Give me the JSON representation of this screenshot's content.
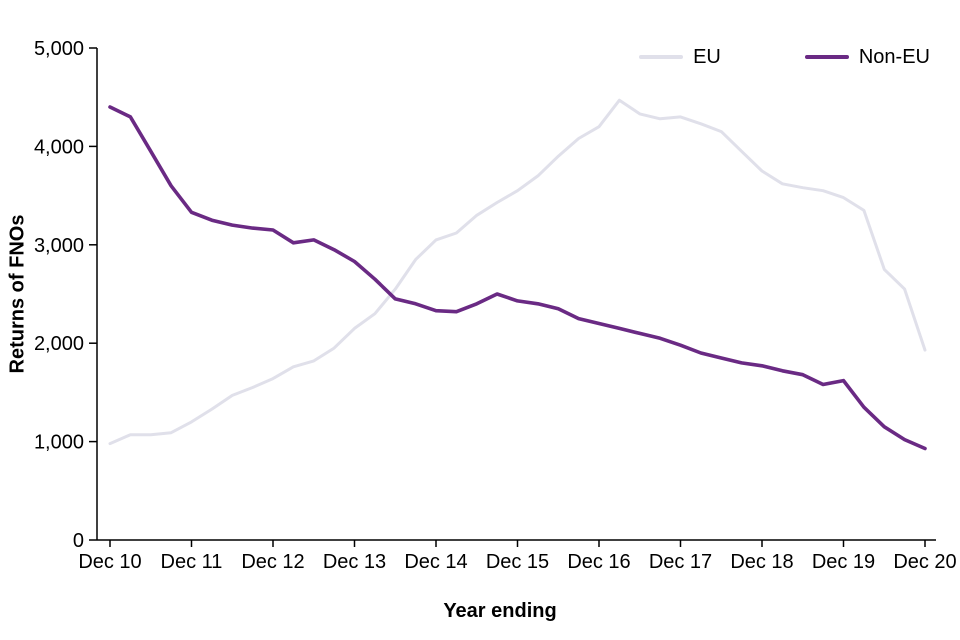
{
  "chart_data": {
    "type": "line",
    "title": "",
    "xlabel": "Year ending",
    "ylabel": "Returns of FNOs",
    "x_tick_labels": [
      "Dec 10",
      "Dec 11",
      "Dec 12",
      "Dec 13",
      "Dec 14",
      "Dec 15",
      "Dec 16",
      "Dec 17",
      "Dec 18",
      "Dec 19",
      "Dec 20"
    ],
    "tick_every": 4,
    "x_frequency": "quarterly",
    "y_ticks": [
      0,
      1000,
      2000,
      3000,
      4000,
      5000
    ],
    "y_tick_labels": [
      "0",
      "1,000",
      "2,000",
      "3,000",
      "4,000",
      "5,000"
    ],
    "ylim": [
      0,
      5000
    ],
    "grid": false,
    "legend_position": "top-right",
    "background_color": "#ffffff",
    "axis_color": "#000000",
    "series": [
      {
        "name": "EU",
        "color": "#e0e0ea",
        "values": [
          980,
          1070,
          1070,
          1090,
          1200,
          1330,
          1470,
          1550,
          1640,
          1760,
          1820,
          1950,
          2150,
          2300,
          2550,
          2850,
          3050,
          3120,
          3300,
          3430,
          3550,
          3700,
          3900,
          4080,
          4200,
          4470,
          4330,
          4280,
          4300,
          4230,
          4150,
          3950,
          3750,
          3620,
          3580,
          3550,
          3480,
          3350,
          2750,
          2550,
          1930
        ]
      },
      {
        "name": "Non-EU",
        "color": "#6a2a84",
        "values": [
          4400,
          4300,
          3950,
          3600,
          3330,
          3250,
          3200,
          3170,
          3150,
          3020,
          3050,
          2950,
          2830,
          2650,
          2450,
          2400,
          2330,
          2320,
          2400,
          2500,
          2430,
          2400,
          2350,
          2250,
          2200,
          2150,
          2100,
          2050,
          1980,
          1900,
          1850,
          1800,
          1770,
          1720,
          1680,
          1580,
          1620,
          1350,
          1150,
          1020,
          930
        ]
      }
    ]
  }
}
